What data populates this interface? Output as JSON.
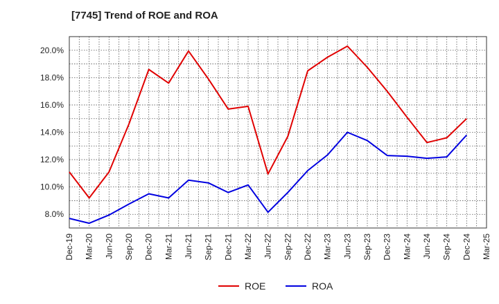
{
  "chart_data": {
    "type": "line",
    "title": "[7745]  Trend of ROE and ROA",
    "xlabel": "",
    "ylabel": "",
    "categories": [
      "Dec-19",
      "Mar-20",
      "Jun-20",
      "Sep-20",
      "Dec-20",
      "Mar-21",
      "Jun-21",
      "Sep-21",
      "Dec-21",
      "Mar-22",
      "Jun-22",
      "Sep-22",
      "Dec-22",
      "Mar-23",
      "Jun-23",
      "Sep-23",
      "Dec-23",
      "Mar-24",
      "Jun-24",
      "Sep-24",
      "Dec-24",
      "Mar-25"
    ],
    "ylim": [
      7.0,
      21.0
    ],
    "yticks": [
      8.0,
      10.0,
      12.0,
      14.0,
      16.0,
      18.0,
      20.0
    ],
    "ytick_labels": [
      "8.0%",
      "10.0%",
      "12.0%",
      "14.0%",
      "16.0%",
      "18.0%",
      "20.0%"
    ],
    "grid": true,
    "legend_position": "bottom-center",
    "series": [
      {
        "name": "ROE",
        "color": "#e00000",
        "values": [
          11.1,
          9.2,
          11.1,
          14.6,
          18.6,
          17.6,
          19.95,
          17.9,
          15.7,
          15.9,
          10.95,
          13.7,
          18.5,
          19.5,
          20.3,
          18.75,
          17.0,
          15.1,
          13.25,
          13.6,
          15.0,
          null
        ]
      },
      {
        "name": "ROA",
        "color": "#0000e0",
        "values": [
          7.7,
          7.35,
          7.95,
          8.75,
          9.5,
          9.2,
          10.5,
          10.3,
          9.6,
          10.15,
          8.15,
          9.6,
          11.2,
          12.35,
          14.0,
          13.4,
          12.3,
          12.25,
          12.1,
          12.2,
          13.8,
          null
        ]
      }
    ]
  }
}
